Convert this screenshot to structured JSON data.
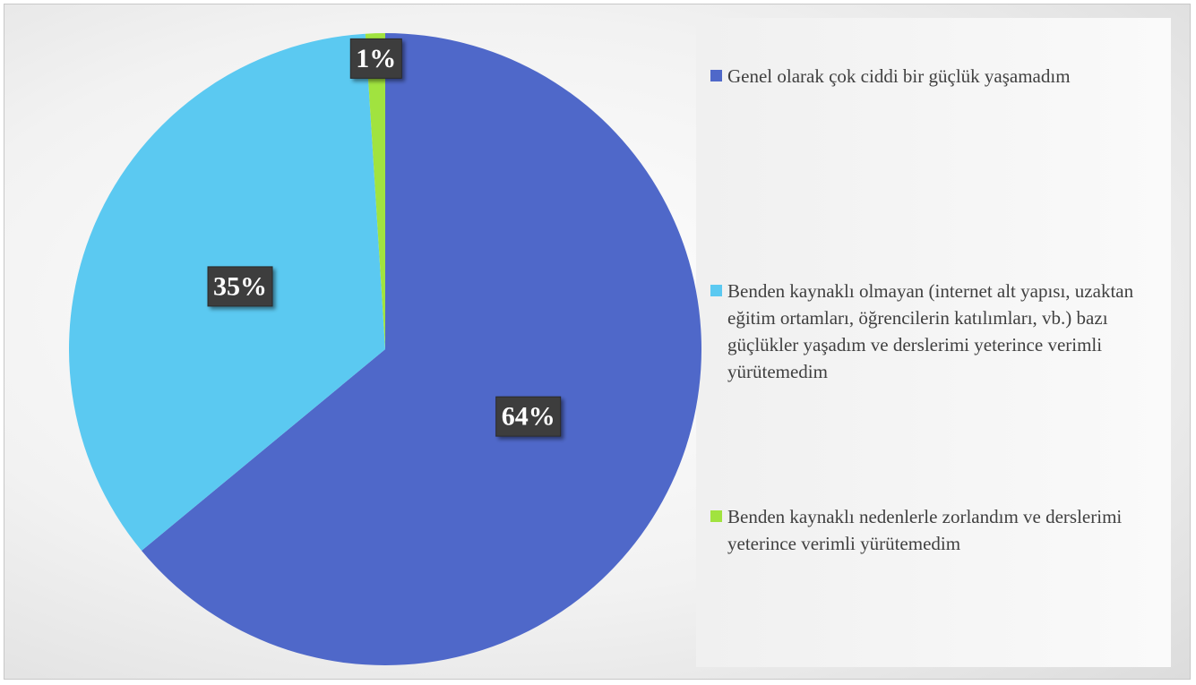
{
  "chart_data": {
    "type": "pie",
    "categories": [
      "Genel olarak çok ciddi bir güçlük yaşamadım",
      "Benden kaynaklı olmayan (internet alt yapısı, uzaktan eğitim ortamları, öğrencilerin katılımları, vb.) bazı güçlükler yaşadım ve derslerimi yeterince verimli yürütemedim",
      "Benden kaynaklı nedenlerle zorlandım ve derslerimi yeterince verimli yürütemedim"
    ],
    "values": [
      64,
      35,
      1
    ],
    "value_labels": [
      "64%",
      "35%",
      "1%"
    ],
    "colors": [
      "#4f68c9",
      "#5bc9f1",
      "#a1e33f"
    ],
    "legend": "right"
  }
}
